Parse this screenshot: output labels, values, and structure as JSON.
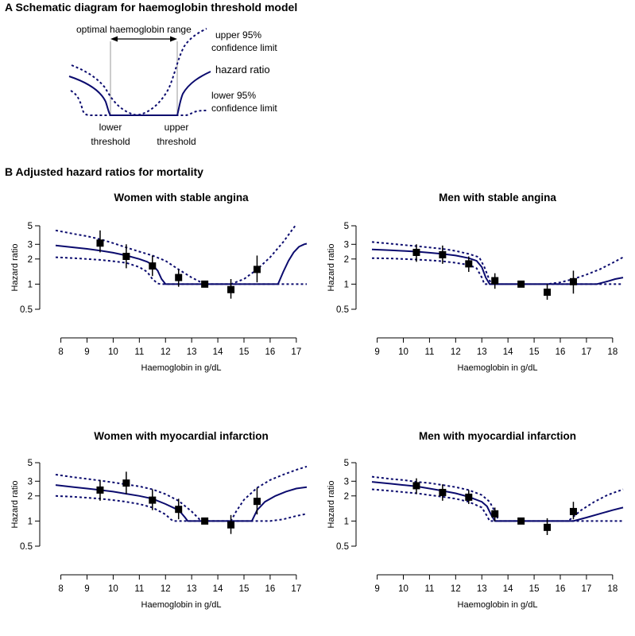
{
  "section_a": {
    "title": "A  Schematic diagram for haemoglobin threshold model",
    "labels": {
      "optimal": "optimal haemoglobin range",
      "upper_ci_1": "upper 95%",
      "upper_ci_2": "confidence limit",
      "hazard": "hazard ratio",
      "lower_ci_1": "lower 95%",
      "lower_ci_2": "confidence limit",
      "lower_thr_1": "lower",
      "lower_thr_2": "threshold",
      "upper_thr_1": "upper",
      "upper_thr_2": "threshold"
    }
  },
  "section_b": {
    "title": "B  Adjusted hazard ratios for mortality"
  },
  "colors": {
    "curve": "#0b0b6e",
    "points": "#000000"
  },
  "chart_data": [
    {
      "type": "line",
      "title": "Women with stable angina",
      "xlabel": "Haemoglobin in g/dL",
      "ylabel": "Hazard ratio",
      "y_scale": "log",
      "xlim": [
        7.8,
        17.4
      ],
      "ylim": [
        0.5,
        5
      ],
      "xticks": [
        8,
        9,
        10,
        11,
        12,
        13,
        14,
        15,
        16,
        17
      ],
      "yticks": [
        0.5,
        1,
        2,
        3,
        5
      ],
      "ytick_labels": [
        "0.5",
        "1",
        "2",
        "3",
        "5"
      ],
      "estimate_points": {
        "x": [
          9.5,
          10.5,
          11.5,
          12.5,
          13.5,
          14.5,
          15.5
        ],
        "y": [
          3.1,
          2.15,
          1.65,
          1.2,
          1.0,
          0.86,
          1.5
        ],
        "lower": [
          2.4,
          1.55,
          1.25,
          0.93,
          1.0,
          0.67,
          1.05
        ],
        "upper": [
          4.4,
          3.0,
          2.2,
          1.5,
          1.0,
          1.15,
          2.2
        ]
      },
      "series": [
        {
          "style": "solid",
          "x": [
            7.8,
            8.5,
            9,
            9.5,
            10,
            10.5,
            11,
            11.3,
            11.5,
            11.7,
            11.85,
            12.0,
            16.3,
            16.5,
            16.7,
            16.9,
            17.1,
            17.3,
            17.4
          ],
          "y": [
            2.9,
            2.75,
            2.65,
            2.52,
            2.38,
            2.2,
            2.0,
            1.85,
            1.7,
            1.45,
            1.15,
            1.0,
            1.0,
            1.4,
            1.9,
            2.4,
            2.8,
            3.0,
            3.05
          ]
        },
        {
          "style": "dashed",
          "x": [
            7.8,
            8.5,
            9,
            9.5,
            10,
            10.5,
            11,
            11.3,
            11.5,
            11.7,
            11.8,
            17.4
          ],
          "y": [
            2.1,
            2.05,
            2.0,
            1.95,
            1.88,
            1.8,
            1.6,
            1.4,
            1.15,
            1.02,
            1.0,
            1.0
          ]
        },
        {
          "style": "dashed",
          "x": [
            7.8,
            8.5,
            9,
            9.5,
            10,
            10.5,
            11,
            11.5,
            12,
            12.5,
            13,
            13.5,
            14,
            14.5,
            15,
            15.5,
            16,
            16.5,
            16.8,
            17.0
          ],
          "y": [
            4.4,
            4.0,
            3.75,
            3.45,
            3.1,
            2.75,
            2.45,
            2.2,
            1.9,
            1.5,
            1.2,
            1.0,
            1.0,
            1.0,
            1.15,
            1.5,
            2.1,
            3.2,
            4.3,
            5.2
          ]
        }
      ]
    },
    {
      "type": "line",
      "title": "Men with stable angina",
      "xlabel": "Haemoglobin in g/dL",
      "ylabel": "Hazard ratio",
      "y_scale": "log",
      "xlim": [
        8.8,
        18.4
      ],
      "ylim": [
        0.5,
        5
      ],
      "xticks": [
        9,
        10,
        11,
        12,
        13,
        14,
        15,
        16,
        17,
        18
      ],
      "yticks": [
        0.5,
        1,
        2,
        3,
        5
      ],
      "ytick_labels": [
        "0.5",
        "1",
        "2",
        "3",
        "5"
      ],
      "estimate_points": {
        "x": [
          10.5,
          11.5,
          12.5,
          13.5,
          14.5,
          15.5,
          16.5
        ],
        "y": [
          2.4,
          2.25,
          1.75,
          1.1,
          1.0,
          0.8,
          1.07
        ],
        "lower": [
          1.85,
          1.75,
          1.4,
          0.88,
          1.0,
          0.65,
          0.77
        ],
        "upper": [
          3.0,
          2.9,
          2.15,
          1.35,
          1.0,
          1.0,
          1.45
        ]
      },
      "series": [
        {
          "style": "solid",
          "x": [
            8.8,
            9.5,
            10,
            10.5,
            11,
            11.5,
            12,
            12.5,
            12.8,
            13.0,
            13.15,
            13.3,
            17.4,
            17.8,
            18.1,
            18.4
          ],
          "y": [
            2.6,
            2.55,
            2.5,
            2.45,
            2.38,
            2.3,
            2.2,
            2.05,
            1.9,
            1.6,
            1.2,
            1.0,
            1.0,
            1.08,
            1.15,
            1.2
          ]
        },
        {
          "style": "dashed",
          "x": [
            8.8,
            9.5,
            10,
            10.5,
            11,
            11.5,
            12,
            12.5,
            12.8,
            13.0,
            13.1,
            18.4
          ],
          "y": [
            2.05,
            2.03,
            2.0,
            1.97,
            1.93,
            1.88,
            1.8,
            1.7,
            1.55,
            1.2,
            1.0,
            1.0
          ]
        },
        {
          "style": "dashed",
          "x": [
            8.8,
            9.5,
            10,
            10.5,
            11,
            11.5,
            12,
            12.5,
            12.9,
            13.1,
            13.3,
            13.4,
            15.5,
            16,
            16.5,
            17,
            17.5,
            18,
            18.4
          ],
          "y": [
            3.2,
            3.05,
            2.95,
            2.85,
            2.75,
            2.65,
            2.5,
            2.3,
            2.1,
            1.6,
            1.1,
            1.0,
            1.0,
            1.05,
            1.15,
            1.3,
            1.5,
            1.8,
            2.1
          ]
        }
      ]
    },
    {
      "type": "line",
      "title": "Women with myocardial infarction",
      "xlabel": "Haemoglobin in g/dL",
      "ylabel": "Hazard ratio",
      "y_scale": "log",
      "xlim": [
        7.8,
        17.4
      ],
      "ylim": [
        0.5,
        5
      ],
      "xticks": [
        8,
        9,
        10,
        11,
        12,
        13,
        14,
        15,
        16,
        17
      ],
      "yticks": [
        0.5,
        1,
        2,
        3,
        5
      ],
      "ytick_labels": [
        "0.5",
        "1",
        "2",
        "3",
        "5"
      ],
      "estimate_points": {
        "x": [
          9.5,
          10.5,
          11.5,
          12.5,
          13.5,
          14.5,
          15.5
        ],
        "y": [
          2.35,
          2.85,
          1.78,
          1.38,
          1.0,
          0.9,
          1.72
        ],
        "lower": [
          1.75,
          2.1,
          1.35,
          1.05,
          1.0,
          0.7,
          1.2
        ],
        "upper": [
          3.1,
          3.9,
          2.4,
          1.85,
          1.0,
          1.18,
          2.5
        ]
      },
      "series": [
        {
          "style": "solid",
          "x": [
            7.8,
            8.5,
            9,
            9.5,
            10,
            10.5,
            11,
            11.5,
            12,
            12.5,
            12.6,
            12.75,
            12.85,
            15.3,
            15.5,
            15.8,
            16.2,
            16.6,
            17.0,
            17.4
          ],
          "y": [
            2.7,
            2.55,
            2.45,
            2.35,
            2.25,
            2.12,
            2.0,
            1.85,
            1.6,
            1.35,
            1.25,
            1.1,
            1.0,
            1.0,
            1.35,
            1.7,
            2.0,
            2.25,
            2.45,
            2.55
          ]
        },
        {
          "style": "dashed",
          "x": [
            7.8,
            8.5,
            9,
            9.5,
            10,
            10.5,
            11,
            11.5,
            12,
            12.2,
            12.3,
            16.0,
            16.5,
            17.0,
            17.4
          ],
          "y": [
            2.0,
            1.95,
            1.9,
            1.85,
            1.78,
            1.7,
            1.6,
            1.45,
            1.2,
            1.05,
            1.0,
            1.0,
            1.05,
            1.15,
            1.22
          ]
        },
        {
          "style": "dashed",
          "x": [
            7.8,
            8.5,
            9,
            9.5,
            10,
            10.5,
            11,
            11.5,
            12,
            12.5,
            13.0,
            13.3,
            13.5,
            14.5,
            14.7,
            15,
            15.5,
            16,
            16.5,
            17.0,
            17.4
          ],
          "y": [
            3.6,
            3.35,
            3.2,
            3.05,
            2.9,
            2.75,
            2.6,
            2.4,
            2.1,
            1.75,
            1.3,
            1.05,
            1.0,
            1.0,
            1.3,
            1.8,
            2.5,
            3.1,
            3.6,
            4.1,
            4.5
          ]
        }
      ]
    },
    {
      "type": "line",
      "title": "Men with myocardial infarction",
      "xlabel": "Haemoglobin in g/dL",
      "ylabel": "Hazard ratio",
      "y_scale": "log",
      "xlim": [
        8.8,
        18.4
      ],
      "ylim": [
        0.5,
        5
      ],
      "xticks": [
        9,
        10,
        11,
        12,
        13,
        14,
        15,
        16,
        17,
        18
      ],
      "yticks": [
        0.5,
        1,
        2,
        3,
        5
      ],
      "ytick_labels": [
        "0.5",
        "1",
        "2",
        "3",
        "5"
      ],
      "estimate_points": {
        "x": [
          10.5,
          11.5,
          12.5,
          13.5,
          14.5,
          15.5,
          16.5
        ],
        "y": [
          2.65,
          2.2,
          1.93,
          1.22,
          1.0,
          0.84,
          1.3
        ],
        "lower": [
          2.1,
          1.75,
          1.6,
          1.0,
          1.0,
          0.68,
          1.05
        ],
        "upper": [
          3.25,
          2.75,
          2.35,
          1.45,
          1.0,
          1.08,
          1.7
        ]
      },
      "series": [
        {
          "style": "solid",
          "x": [
            8.8,
            9.5,
            10,
            10.5,
            11,
            11.5,
            12,
            12.5,
            13,
            13.2,
            13.35,
            13.5,
            16.5,
            17,
            17.5,
            18,
            18.4
          ],
          "y": [
            2.95,
            2.8,
            2.7,
            2.6,
            2.45,
            2.3,
            2.15,
            1.95,
            1.7,
            1.5,
            1.2,
            1.0,
            1.0,
            1.1,
            1.22,
            1.35,
            1.45
          ]
        },
        {
          "style": "dashed",
          "x": [
            8.8,
            9.5,
            10,
            10.5,
            11,
            11.5,
            12,
            12.5,
            13,
            13.2,
            13.3,
            18.4
          ],
          "y": [
            2.4,
            2.3,
            2.22,
            2.15,
            2.05,
            1.95,
            1.85,
            1.7,
            1.45,
            1.15,
            1.0,
            1.0
          ]
        },
        {
          "style": "dashed",
          "x": [
            8.8,
            9.5,
            10,
            10.5,
            11,
            11.5,
            12,
            12.5,
            13,
            13.3,
            13.5,
            13.65,
            16.3,
            16.8,
            17.3,
            17.8,
            18.4
          ],
          "y": [
            3.4,
            3.2,
            3.1,
            2.95,
            2.85,
            2.7,
            2.55,
            2.35,
            2.05,
            1.7,
            1.3,
            1.0,
            1.0,
            1.35,
            1.7,
            2.05,
            2.4
          ]
        }
      ]
    }
  ]
}
